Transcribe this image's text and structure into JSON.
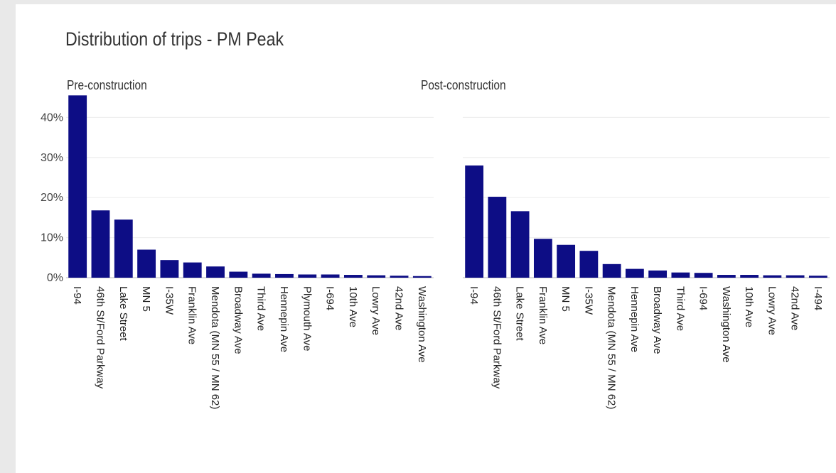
{
  "title": "Distribution of trips - PM Peak",
  "colors": {
    "bar": "#0d0d85",
    "grid": "#ececec",
    "axis": "#bbbbbb"
  },
  "chart_data": [
    {
      "type": "bar",
      "title": "Pre-construction",
      "ylim": [
        0,
        0.46
      ],
      "yticks": [
        0,
        0.1,
        0.2,
        0.3,
        0.4
      ],
      "ytick_labels": [
        "0%",
        "10%",
        "20%",
        "30%",
        "40%"
      ],
      "grid": true,
      "categories": [
        "I-94",
        "46th St/Ford Parkway",
        "Lake Street",
        "MN 5",
        "I-35W",
        "Franklin Ave",
        "Mendota (MN 55 / MN 62)",
        "Broadway Ave",
        "Third Ave",
        "Hennepin Ave",
        "Plymouth Ave",
        "I-694",
        "10th Ave",
        "Lowry Ave",
        "42nd Ave",
        "Washington Ave"
      ],
      "values": [
        0.455,
        0.168,
        0.145,
        0.07,
        0.044,
        0.038,
        0.028,
        0.015,
        0.01,
        0.009,
        0.008,
        0.008,
        0.007,
        0.006,
        0.005,
        0.004
      ]
    },
    {
      "type": "bar",
      "title": "Post-construction",
      "ylim": [
        0,
        0.46
      ],
      "yticks": [
        0,
        0.1,
        0.2,
        0.3,
        0.4
      ],
      "grid": true,
      "categories": [
        "I-94",
        "46th St/Ford Parkway",
        "Lake Street",
        "Franklin Ave",
        "MN 5",
        "I-35W",
        "Mendota (MN 55 / MN 62)",
        "Hennepin Ave",
        "Broadway Ave",
        "Third Ave",
        "I-694",
        "Washington Ave",
        "10th Ave",
        "Lowry Ave",
        "42nd Ave",
        "I-494"
      ],
      "values": [
        0.28,
        0.202,
        0.166,
        0.097,
        0.082,
        0.067,
        0.034,
        0.022,
        0.018,
        0.013,
        0.012,
        0.007,
        0.007,
        0.006,
        0.006,
        0.005
      ]
    }
  ]
}
